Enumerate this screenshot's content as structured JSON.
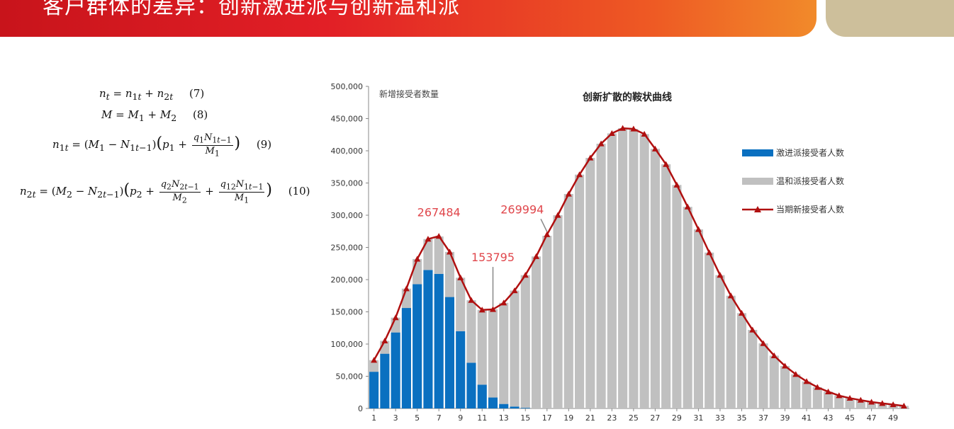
{
  "header": {
    "title": "客户群体的差异：创新激进派与创新温和派"
  },
  "formulas": [
    {
      "lhs": "n_t",
      "rhs": "= n_{1t} + n_{2t}",
      "number": "(7)"
    },
    {
      "lhs": "M",
      "rhs": "= M_1 + M_2",
      "number": "(8)"
    },
    {
      "lhs": "n_{1t}",
      "rhs": "= (M_1 − N_{1t−1})(p_1 + q_1N_{1t−1}/M_1)",
      "number": "(9)"
    },
    {
      "lhs": "n_{2t}",
      "rhs": "= (M_2 − N_{2t−1})(p_2 + q_2N_{2t−1}/M_2 + q_{12}N_{1t−1}/M_1)",
      "number": "(10)"
    }
  ],
  "chart_data": {
    "type": "bar",
    "stacked": true,
    "title": "创新扩散的鞍状曲线",
    "ylabel": "新增接受者数量",
    "ylim": [
      0,
      500000
    ],
    "yticks": [
      "0",
      "50,000",
      "100,000",
      "150,000",
      "200,000",
      "250,000",
      "300,000",
      "350,000",
      "400,000",
      "450,000",
      "500,000"
    ],
    "x": [
      1,
      2,
      3,
      4,
      5,
      6,
      7,
      8,
      9,
      10,
      11,
      12,
      13,
      14,
      15,
      16,
      17,
      18,
      19,
      20,
      21,
      22,
      23,
      24,
      25,
      26,
      27,
      28,
      29,
      30,
      31,
      32,
      33,
      34,
      35,
      36,
      37,
      38,
      39,
      40,
      41,
      42,
      43,
      44,
      45,
      46,
      47,
      48,
      49,
      50
    ],
    "xtick_labels": [
      "1",
      "3",
      "5",
      "7",
      "9",
      "11",
      "13",
      "15",
      "17",
      "19",
      "21",
      "23",
      "25",
      "27",
      "29",
      "31",
      "33",
      "35",
      "37",
      "39",
      "41",
      "43",
      "45",
      "47",
      "49"
    ],
    "series": [
      {
        "name": "激进派接受者人数",
        "type": "bar",
        "color": "#0a70c0",
        "values": [
          57000,
          85000,
          118000,
          156000,
          193000,
          215000,
          209000,
          173000,
          120000,
          71000,
          37000,
          17000,
          7000,
          3000,
          1000,
          0,
          0,
          0,
          0,
          0,
          0,
          0,
          0,
          0,
          0,
          0,
          0,
          0,
          0,
          0,
          0,
          0,
          0,
          0,
          0,
          0,
          0,
          0,
          0,
          0,
          0,
          0,
          0,
          0,
          0,
          0,
          0,
          0,
          0,
          0
        ]
      },
      {
        "name": "温和派接受者人数",
        "type": "bar",
        "color": "#c0c0c0",
        "values": [
          18000,
          20000,
          23000,
          30000,
          39000,
          48000,
          58000,
          70000,
          83000,
          97000,
          116000,
          137000,
          157000,
          180000,
          206000,
          236000,
          268000,
          300000,
          333000,
          363000,
          389000,
          411000,
          427000,
          435000,
          434000,
          426000,
          403000,
          379000,
          347000,
          313000,
          278000,
          242000,
          207000,
          175000,
          148000,
          122000,
          101000,
          82000,
          66000,
          53000,
          42000,
          33000,
          26000,
          20000,
          16000,
          13000,
          10000,
          8000,
          6000,
          4000
        ]
      },
      {
        "name": "当期新接受者人数",
        "type": "line",
        "color": "#b01010",
        "values": [
          75000,
          105000,
          141000,
          186000,
          232000,
          263000,
          267484,
          243000,
          203000,
          168000,
          153000,
          153795,
          164000,
          183000,
          207000,
          236000,
          269994,
          300000,
          333000,
          363000,
          389000,
          411000,
          427000,
          435000,
          434000,
          426000,
          403000,
          379000,
          347000,
          313000,
          278000,
          242000,
          207000,
          175000,
          148000,
          122000,
          101000,
          82000,
          66000,
          53000,
          42000,
          33000,
          26000,
          20000,
          16000,
          13000,
          10000,
          8000,
          6000,
          4000
        ]
      }
    ],
    "annotations": [
      {
        "text": "267484",
        "x": 7,
        "value": 267484
      },
      {
        "text": "153795",
        "x": 12,
        "value": 153795
      },
      {
        "text": "269994",
        "x": 17,
        "value": 269994
      }
    ],
    "legend_position": "right",
    "annotation_color": "#e0474c"
  }
}
